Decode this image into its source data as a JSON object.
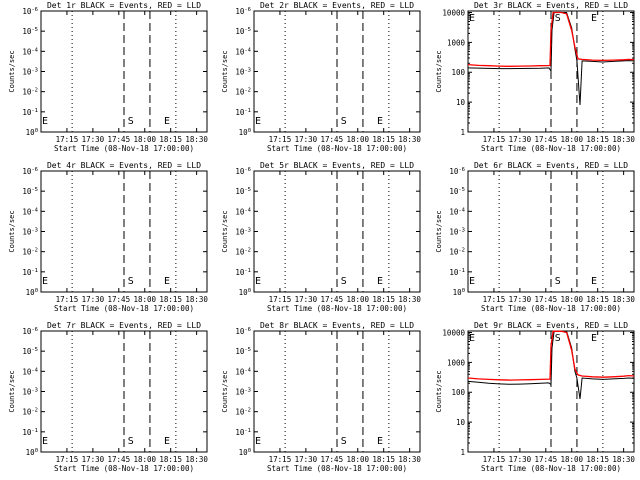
{
  "figure": {
    "xlabel": "Start Time (08-Nov-18 17:00:00)",
    "ylabel": "Counts/sec",
    "x_tick_labels": [
      "17:15",
      "17:30",
      "17:45",
      "18:00",
      "18:15",
      "18:30"
    ],
    "colors": {
      "events": "#000000",
      "lld": "#ff0000"
    }
  },
  "chart_data": [
    {
      "type": "line",
      "title": "Det 1r BLACK = Events, RED = LLD",
      "xlabel": "Start Time (08-Nov-18 17:00:00)",
      "ylabel": "Counts/sec",
      "x_ticks": [
        "17:15",
        "17:30",
        "17:45",
        "18:00",
        "18:15",
        "18:30"
      ],
      "y_scale": "log",
      "y_tick_labels": [
        "10^0",
        "10^-1",
        "10^-2",
        "10^-3",
        "10^-4",
        "10^-5",
        "10^-6"
      ],
      "markers": [
        {
          "label": "E",
          "time": "17:00"
        },
        {
          "label": "S",
          "time": "17:49"
        },
        {
          "label": "E",
          "time": "18:10"
        }
      ],
      "series": []
    },
    {
      "type": "line",
      "title": "Det 2r BLACK = Events, RED = LLD",
      "xlabel": "Start Time (08-Nov-18 17:00:00)",
      "ylabel": "Counts/sec",
      "x_ticks": [
        "17:15",
        "17:30",
        "17:45",
        "18:00",
        "18:15",
        "18:30"
      ],
      "y_scale": "log",
      "y_tick_labels": [
        "10^0",
        "10^-1",
        "10^-2",
        "10^-3",
        "10^-4",
        "10^-5",
        "10^-6"
      ],
      "markers": [
        {
          "label": "E",
          "time": "17:00"
        },
        {
          "label": "S",
          "time": "17:49"
        },
        {
          "label": "E",
          "time": "18:10"
        }
      ],
      "series": []
    },
    {
      "type": "line",
      "title": "Det 3r BLACK = Events, RED = LLD",
      "xlabel": "Start Time (08-Nov-18 17:00:00)",
      "ylabel": "Counts/sec",
      "x_ticks": [
        "17:15",
        "17:30",
        "17:45",
        "18:00",
        "18:15",
        "18:30"
      ],
      "y_scale": "log",
      "y_tick_labels": [
        "1",
        "10",
        "100",
        "1000",
        "10000"
      ],
      "markers": [
        {
          "label": "E",
          "time": "17:00"
        },
        {
          "label": "S",
          "time": "17:49"
        },
        {
          "label": "E",
          "time": "18:10"
        }
      ],
      "series": [
        {
          "color": "#000000",
          "points": [
            [
              17.0,
              140
            ],
            [
              17.1,
              138
            ],
            [
              17.2,
              135
            ],
            [
              17.3,
              132
            ],
            [
              17.4,
              132
            ],
            [
              17.5,
              133
            ],
            [
              17.6,
              134
            ],
            [
              17.7,
              136
            ],
            [
              17.78,
              140
            ],
            [
              17.8,
              110
            ],
            [
              17.81,
              2600
            ],
            [
              17.83,
              10000
            ],
            [
              17.9,
              10000
            ],
            [
              17.95,
              10000
            ],
            [
              18.0,
              3000
            ],
            [
              18.03,
              600
            ],
            [
              18.05,
              250
            ],
            [
              18.08,
              8
            ],
            [
              18.1,
              240
            ],
            [
              18.2,
              230
            ],
            [
              18.3,
              220
            ],
            [
              18.4,
              230
            ],
            [
              18.5,
              240
            ],
            [
              18.55,
              245
            ],
            [
              18.6,
              240
            ]
          ]
        },
        {
          "color": "#ff0000",
          "points": [
            [
              17.0,
              180
            ],
            [
              17.1,
              170
            ],
            [
              17.2,
              165
            ],
            [
              17.3,
              160
            ],
            [
              17.4,
              158
            ],
            [
              17.5,
              160
            ],
            [
              17.6,
              162
            ],
            [
              17.7,
              165
            ],
            [
              17.79,
              168
            ],
            [
              17.8,
              2600
            ],
            [
              17.82,
              10000
            ],
            [
              17.9,
              10000
            ],
            [
              17.95,
              9000
            ],
            [
              18.0,
              2500
            ],
            [
              18.03,
              700
            ],
            [
              18.06,
              280
            ],
            [
              18.1,
              270
            ],
            [
              18.2,
              255
            ],
            [
              18.3,
              250
            ],
            [
              18.4,
              255
            ],
            [
              18.5,
              260
            ],
            [
              18.55,
              270
            ],
            [
              18.6,
              265
            ]
          ]
        }
      ]
    },
    {
      "type": "line",
      "title": "Det 4r BLACK = Events, RED = LLD",
      "xlabel": "Start Time (08-Nov-18 17:00:00)",
      "ylabel": "Counts/sec",
      "x_ticks": [
        "17:15",
        "17:30",
        "17:45",
        "18:00",
        "18:15",
        "18:30"
      ],
      "y_scale": "log",
      "y_tick_labels": [
        "10^0",
        "10^-1",
        "10^-2",
        "10^-3",
        "10^-4",
        "10^-5",
        "10^-6"
      ],
      "markers": [
        {
          "label": "E",
          "time": "17:00"
        },
        {
          "label": "S",
          "time": "17:49"
        },
        {
          "label": "E",
          "time": "18:10"
        }
      ],
      "series": []
    },
    {
      "type": "line",
      "title": "Det 5r BLACK = Events, RED = LLD",
      "xlabel": "Start Time (08-Nov-18 17:00:00)",
      "ylabel": "Counts/sec",
      "x_ticks": [
        "17:15",
        "17:30",
        "17:45",
        "18:00",
        "18:15",
        "18:30"
      ],
      "y_scale": "log",
      "y_tick_labels": [
        "10^0",
        "10^-1",
        "10^-2",
        "10^-3",
        "10^-4",
        "10^-5",
        "10^-6"
      ],
      "markers": [
        {
          "label": "E",
          "time": "17:00"
        },
        {
          "label": "S",
          "time": "17:49"
        },
        {
          "label": "E",
          "time": "18:10"
        }
      ],
      "series": []
    },
    {
      "type": "line",
      "title": "Det 6r BLACK = Events, RED = LLD",
      "xlabel": "Start Time (08-Nov-18 17:00:00)",
      "ylabel": "Counts/sec",
      "x_ticks": [
        "17:15",
        "17:30",
        "17:45",
        "18:00",
        "18:15",
        "18:30"
      ],
      "y_scale": "log",
      "y_tick_labels": [
        "10^0",
        "10^-1",
        "10^-2",
        "10^-3",
        "10^-4",
        "10^-5",
        "10^-6"
      ],
      "markers": [
        {
          "label": "E",
          "time": "17:00"
        },
        {
          "label": "S",
          "time": "17:49"
        },
        {
          "label": "E",
          "time": "18:10"
        }
      ],
      "series": []
    },
    {
      "type": "line",
      "title": "Det 7r BLACK = Events, RED = LLD",
      "xlabel": "Start Time (08-Nov-18 17:00:00)",
      "ylabel": "Counts/sec",
      "x_ticks": [
        "17:15",
        "17:30",
        "17:45",
        "18:00",
        "18:15",
        "18:30"
      ],
      "y_scale": "log",
      "y_tick_labels": [
        "10^0",
        "10^-1",
        "10^-2",
        "10^-3",
        "10^-4",
        "10^-5",
        "10^-6"
      ],
      "markers": [
        {
          "label": "E",
          "time": "17:00"
        },
        {
          "label": "S",
          "time": "17:49"
        },
        {
          "label": "E",
          "time": "18:10"
        }
      ],
      "series": []
    },
    {
      "type": "line",
      "title": "Det 8r BLACK = Events, RED = LLD",
      "xlabel": "Start Time (08-Nov-18 17:00:00)",
      "ylabel": "Counts/sec",
      "x_ticks": [
        "17:15",
        "17:30",
        "17:45",
        "18:00",
        "18:15",
        "18:30"
      ],
      "y_scale": "log",
      "y_tick_labels": [
        "10^0",
        "10^-1",
        "10^-2",
        "10^-3",
        "10^-4",
        "10^-5",
        "10^-6"
      ],
      "markers": [
        {
          "label": "E",
          "time": "17:00"
        },
        {
          "label": "S",
          "time": "17:49"
        },
        {
          "label": "E",
          "time": "18:10"
        }
      ],
      "series": []
    },
    {
      "type": "line",
      "title": "Det 9r BLACK = Events, RED = LLD",
      "xlabel": "Start Time (08-Nov-18 17:00:00)",
      "ylabel": "Counts/sec",
      "x_ticks": [
        "17:15",
        "17:30",
        "17:45",
        "18:00",
        "18:15",
        "18:30"
      ],
      "y_scale": "log",
      "y_tick_labels": [
        "1",
        "10",
        "100",
        "1000",
        "10000"
      ],
      "markers": [
        {
          "label": "E",
          "time": "17:00"
        },
        {
          "label": "S",
          "time": "17:49"
        },
        {
          "label": "E",
          "time": "18:10"
        }
      ],
      "series": [
        {
          "color": "#000000",
          "points": [
            [
              17.0,
              230
            ],
            [
              17.1,
              215
            ],
            [
              17.2,
              200
            ],
            [
              17.3,
              190
            ],
            [
              17.4,
              185
            ],
            [
              17.5,
              188
            ],
            [
              17.6,
              192
            ],
            [
              17.7,
              200
            ],
            [
              17.78,
              205
            ],
            [
              17.8,
              180
            ],
            [
              17.81,
              3000
            ],
            [
              17.83,
              11000
            ],
            [
              17.9,
              11000
            ],
            [
              17.95,
              11000
            ],
            [
              18.0,
              3000
            ],
            [
              18.03,
              500
            ],
            [
              18.05,
              300
            ],
            [
              18.08,
              60
            ],
            [
              18.1,
              300
            ],
            [
              18.2,
              280
            ],
            [
              18.3,
              270
            ],
            [
              18.4,
              280
            ],
            [
              18.5,
              290
            ],
            [
              18.55,
              300
            ],
            [
              18.6,
              290
            ]
          ]
        },
        {
          "color": "#ff0000",
          "points": [
            [
              17.0,
              300
            ],
            [
              17.1,
              280
            ],
            [
              17.2,
              270
            ],
            [
              17.3,
              260
            ],
            [
              17.4,
              255
            ],
            [
              17.5,
              258
            ],
            [
              17.6,
              262
            ],
            [
              17.7,
              270
            ],
            [
              17.79,
              275
            ],
            [
              17.8,
              3500
            ],
            [
              17.82,
              11000
            ],
            [
              17.9,
              11000
            ],
            [
              17.95,
              10000
            ],
            [
              18.0,
              2500
            ],
            [
              18.03,
              600
            ],
            [
              18.06,
              380
            ],
            [
              18.1,
              350
            ],
            [
              18.2,
              330
            ],
            [
              18.3,
              320
            ],
            [
              18.4,
              330
            ],
            [
              18.5,
              345
            ],
            [
              18.55,
              360
            ],
            [
              18.6,
              350
            ]
          ]
        }
      ]
    }
  ]
}
